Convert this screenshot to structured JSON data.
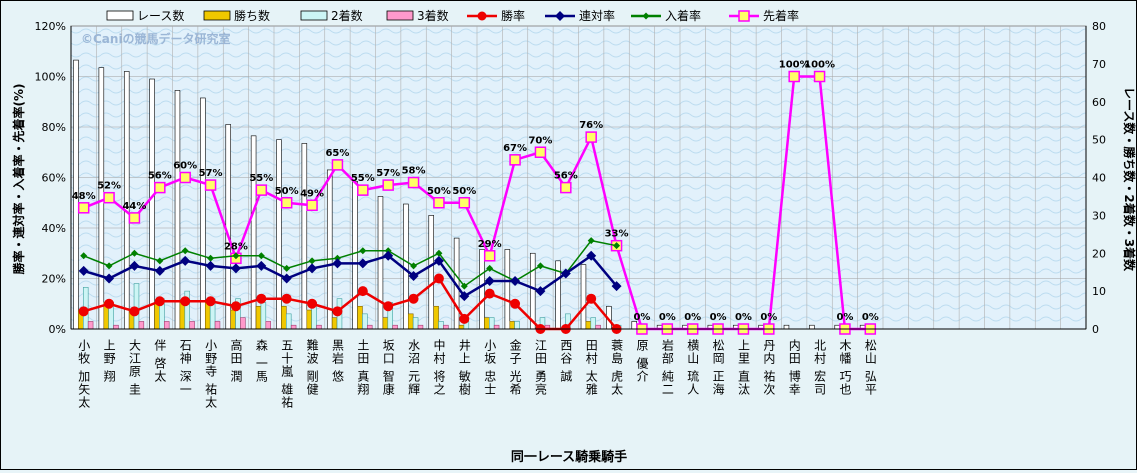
{
  "chart_data": {
    "type": "bar",
    "watermark": "©Caniの競馬データ研究室",
    "xlabel": "同一レース騎乗騎手",
    "ylabel_left": "勝率・連対率・入着率・先着率(%)",
    "ylabel_right": "レース数・勝ち数・2着数・3着数",
    "ylim_left": [
      0,
      120
    ],
    "ylim_right": [
      0,
      80
    ],
    "yticks_left": [
      "0%",
      "20%",
      "40%",
      "60%",
      "80%",
      "100%",
      "120%"
    ],
    "yticks_right": [
      "0",
      "10",
      "20",
      "30",
      "40",
      "50",
      "60",
      "70",
      "80"
    ],
    "categories": [
      "小牧 加矢太",
      "上野 翔",
      "大江原 圭",
      "伴 啓太",
      "石神 深一",
      "小野寺 祐太",
      "高田 潤",
      "森 一馬",
      "五十嵐 雄祐",
      "難波 剛健",
      "黒岩 悠",
      "土田 真翔",
      "坂口 智康",
      "水沼 元輝",
      "中村 将之",
      "井上 敏樹",
      "小坂 忠士",
      "金子 光希",
      "江田 勇亮",
      "西谷 誠",
      "田村 太雅",
      "蓑島 虎太",
      "原 優介",
      "岩部 純二",
      "横山 琉人",
      "松岡 正海",
      "上里 直汰",
      "丹内 祐次",
      "内田 博幸",
      "北村 宏司",
      "木幡 巧也",
      "松山 弘平"
    ],
    "legend": [
      "レース数",
      "勝ち数",
      "2着数",
      "3着数",
      "勝率",
      "連対率",
      "入着率",
      "先着率"
    ],
    "colors": {
      "races": "#ffffff",
      "wins": "#f0c800",
      "second": "#ccf5f5",
      "third": "#ff99cc",
      "win_rate": "#ee0000",
      "rentai": "#000080",
      "nyuchaku": "#008000",
      "senchaku": "#ff00ff"
    },
    "series_bars": [
      {
        "name": "レース数",
        "values": [
          71,
          69,
          68,
          66,
          63,
          61,
          54,
          51,
          50,
          49,
          42,
          39,
          35,
          33,
          30,
          24,
          21,
          21,
          20,
          18,
          17,
          6,
          2,
          1,
          1,
          1,
          1,
          1,
          1,
          1,
          1,
          1
        ]
      },
      {
        "name": "勝ち数",
        "values": [
          5,
          7,
          5,
          7,
          7,
          7,
          5,
          6,
          6,
          5,
          3,
          6,
          3,
          4,
          6,
          1,
          3,
          2,
          0,
          0,
          2,
          0,
          0,
          0,
          0,
          0,
          0,
          0,
          0,
          0,
          0,
          0
        ]
      },
      {
        "name": "2着数",
        "values": [
          11,
          7,
          12,
          8,
          10,
          8,
          8,
          7,
          4,
          7,
          8,
          4,
          7,
          3,
          2,
          2,
          3,
          2,
          3,
          4,
          3,
          1,
          0,
          0,
          0,
          0,
          0,
          0,
          0,
          0,
          0,
          0
        ]
      },
      {
        "name": "3着数",
        "values": [
          2,
          1,
          2,
          2,
          2,
          2,
          3,
          2,
          1,
          1,
          0,
          1,
          1,
          1,
          1,
          0,
          1,
          0,
          1,
          0,
          1,
          0,
          0,
          0,
          0,
          0,
          0,
          0,
          0,
          0,
          0,
          0
        ]
      }
    ],
    "series_lines": [
      {
        "name": "勝率",
        "values": [
          7,
          10,
          7,
          11,
          11,
          11,
          9,
          12,
          12,
          10,
          7,
          15,
          9,
          12,
          20,
          4,
          14,
          10,
          0,
          0,
          12,
          0,
          0,
          0,
          0,
          0,
          0,
          0,
          0,
          0,
          0,
          0
        ]
      },
      {
        "name": "連対率",
        "values": [
          23,
          20,
          25,
          23,
          27,
          25,
          24,
          25,
          20,
          24,
          26,
          26,
          29,
          21,
          27,
          13,
          19,
          19,
          15,
          22,
          29,
          17,
          0,
          0,
          0,
          0,
          0,
          0,
          0,
          0,
          0,
          0
        ]
      },
      {
        "name": "入着率",
        "values": [
          29,
          25,
          30,
          27,
          31,
          28,
          29,
          29,
          24,
          27,
          28,
          31,
          31,
          25,
          30,
          17,
          24,
          19,
          25,
          22,
          35,
          33,
          0,
          0,
          0,
          0,
          0,
          0,
          0,
          0,
          0,
          0
        ]
      },
      {
        "name": "先着率",
        "values": [
          48,
          52,
          44,
          56,
          60,
          57,
          28,
          55,
          50,
          49,
          65,
          55,
          57,
          58,
          50,
          50,
          29,
          67,
          70,
          56,
          76,
          33,
          0,
          0,
          0,
          0,
          0,
          0,
          100,
          100,
          0,
          0
        ]
      }
    ],
    "rate_labels": [
      "48%",
      "52%",
      "44%",
      "56%",
      "60%",
      "57%",
      "28%",
      "55%",
      "50%",
      "49%",
      "65%",
      "55%",
      "57%",
      "58%",
      "50%",
      "50%",
      "29%",
      "67%",
      "70%",
      "56%",
      "76%",
      "33%",
      "0%",
      "0%",
      "0%",
      "0%",
      "0%",
      "0%",
      "100%",
      "100%",
      "0%",
      "0%"
    ],
    "grid": true,
    "legend_position": "top"
  }
}
